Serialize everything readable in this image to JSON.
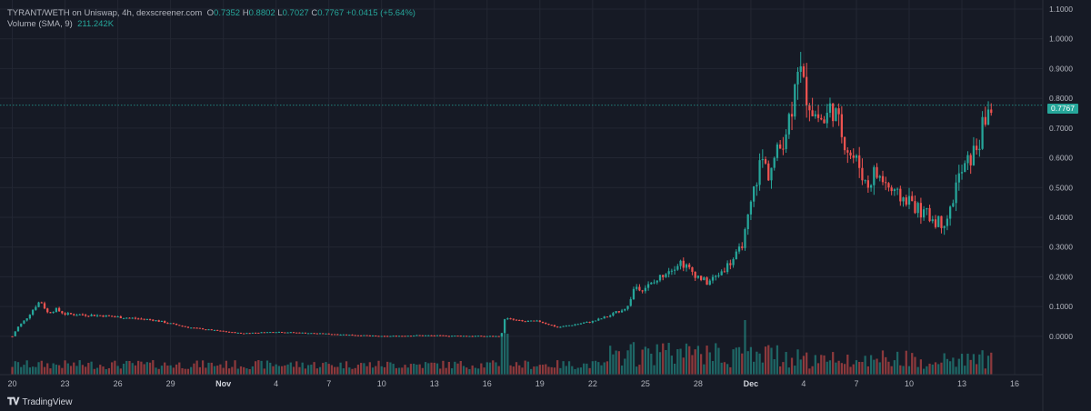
{
  "header": {
    "pair": "TYRANT/WETH on Uniswap, 4h, dexscreener.com",
    "o_label": "O",
    "o_value": "0.7352",
    "h_label": "H",
    "h_value": "0.8802",
    "l_label": "L",
    "l_value": "0.7027",
    "c_label": "C",
    "c_value": "0.7767",
    "change": "+0.0415 (+5.64%)",
    "volume_label": "Volume (SMA, 9)",
    "volume_value": "211.242K"
  },
  "brand": "TradingView",
  "last_price_tag": "0.7767",
  "colors": {
    "up": "#26a69a",
    "down": "#ef5350",
    "background": "#161a25",
    "grid": "#232733"
  },
  "chart_data": {
    "type": "candlestick",
    "title": "TYRANT/WETH on Uniswap, 4h, dexscreener.com",
    "y_ticks": [
      "1.1000",
      "1.0000",
      "0.9000",
      "0.8000",
      "0.7000",
      "0.6000",
      "0.5000",
      "0.4000",
      "0.3000",
      "0.2000",
      "0.1000",
      "0.0000"
    ],
    "ylim": [
      -0.08,
      1.1
    ],
    "x_ticks": [
      "20",
      "23",
      "26",
      "29",
      "Nov",
      "4",
      "7",
      "10",
      "13",
      "16",
      "19",
      "22",
      "25",
      "28",
      "Dec",
      "4",
      "7",
      "10",
      "13",
      "16"
    ],
    "x_tick_days": [
      0,
      3,
      6,
      9,
      12,
      15,
      18,
      21,
      24,
      27,
      30,
      33,
      36,
      39,
      42,
      45,
      48,
      51,
      54,
      57
    ],
    "x_range_days": [
      -0.7,
      58.6
    ],
    "last_price": 0.7767,
    "close_anchors": [
      [
        0.0,
        0.0
      ],
      [
        0.3,
        0.03
      ],
      [
        0.8,
        0.06
      ],
      [
        1.3,
        0.1
      ],
      [
        1.6,
        0.12
      ],
      [
        2.0,
        0.08
      ],
      [
        2.5,
        0.09
      ],
      [
        3.0,
        0.075
      ],
      [
        5.0,
        0.07
      ],
      [
        8.0,
        0.055
      ],
      [
        10.0,
        0.03
      ],
      [
        13.0,
        0.01
      ],
      [
        15.0,
        0.015
      ],
      [
        18.0,
        0.008
      ],
      [
        21.0,
        0.0
      ],
      [
        23.0,
        0.003
      ],
      [
        27.8,
        0.0
      ],
      [
        28.0,
        0.06
      ],
      [
        29.0,
        0.05
      ],
      [
        30.0,
        0.05
      ],
      [
        31.0,
        0.03
      ],
      [
        32.0,
        0.04
      ],
      [
        33.0,
        0.05
      ],
      [
        34.0,
        0.07
      ],
      [
        35.0,
        0.1
      ],
      [
        35.4,
        0.17
      ],
      [
        35.8,
        0.16
      ],
      [
        36.5,
        0.18
      ],
      [
        37.2,
        0.22
      ],
      [
        38.0,
        0.25
      ],
      [
        38.8,
        0.21
      ],
      [
        39.5,
        0.18
      ],
      [
        40.0,
        0.2
      ],
      [
        40.7,
        0.24
      ],
      [
        41.3,
        0.28
      ],
      [
        41.7,
        0.35
      ],
      [
        42.2,
        0.5
      ],
      [
        42.6,
        0.6
      ],
      [
        43.0,
        0.55
      ],
      [
        43.7,
        0.64
      ],
      [
        44.3,
        0.76
      ],
      [
        44.6,
        0.94
      ],
      [
        45.0,
        0.84
      ],
      [
        45.6,
        0.75
      ],
      [
        46.2,
        0.72
      ],
      [
        46.6,
        0.78
      ],
      [
        47.0,
        0.71
      ],
      [
        47.6,
        0.62
      ],
      [
        48.2,
        0.57
      ],
      [
        48.6,
        0.5
      ],
      [
        49.0,
        0.55
      ],
      [
        49.6,
        0.52
      ],
      [
        50.2,
        0.47
      ],
      [
        51.0,
        0.46
      ],
      [
        51.6,
        0.42
      ],
      [
        52.2,
        0.4
      ],
      [
        52.8,
        0.38
      ],
      [
        53.3,
        0.41
      ],
      [
        53.7,
        0.52
      ],
      [
        54.3,
        0.58
      ],
      [
        54.7,
        0.62
      ],
      [
        55.0,
        0.66
      ],
      [
        55.4,
        0.75
      ],
      [
        55.7,
        0.7767
      ]
    ],
    "volume_note": "volume bars shown at bottom"
  }
}
